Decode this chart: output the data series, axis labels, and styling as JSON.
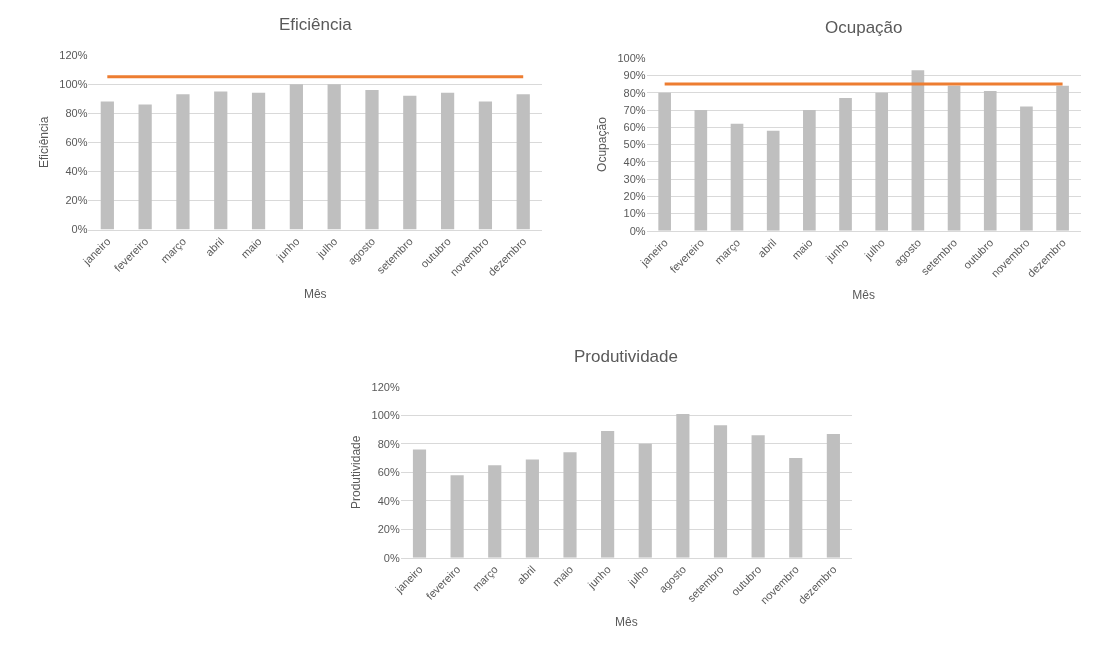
{
  "chart_data": [
    {
      "type": "bar",
      "title": "Eficiência",
      "xlabel": "Mês",
      "ylabel": "Eficiência",
      "categories": [
        "janeiro",
        "fevereiro",
        "março",
        "abril",
        "maio",
        "junho",
        "julho",
        "agosto",
        "setembro",
        "outubro",
        "novembro",
        "dezembro"
      ],
      "series": [
        {
          "color": "#bfbfbf",
          "values": [
            88,
            86,
            93,
            95,
            94,
            100,
            100,
            96,
            92,
            94,
            88,
            93
          ]
        },
        {
          "type": "line",
          "color": "#ed7d31",
          "values": [
            105,
            105,
            105,
            105,
            105,
            105,
            105,
            105,
            105,
            105,
            105,
            105
          ]
        }
      ],
      "ylim": [
        0,
        120
      ],
      "yticks": [
        {
          "value": 0,
          "label": "0%"
        },
        {
          "value": 20,
          "label": "20%"
        },
        {
          "value": 40,
          "label": "40%"
        },
        {
          "value": 60,
          "label": "60%"
        },
        {
          "value": 80,
          "label": "80%"
        },
        {
          "value": 100,
          "label": "100%"
        },
        {
          "value": 120,
          "label": "120%"
        }
      ],
      "grid": "y"
    },
    {
      "type": "bar",
      "title": "Ocupação",
      "xlabel": "Mês",
      "ylabel": "Ocupação",
      "categories": [
        "janeiro",
        "fevereiro",
        "março",
        "abril",
        "maio",
        "junho",
        "julho",
        "agosto",
        "setembro",
        "outubro",
        "novembro",
        "dezembro"
      ],
      "series": [
        {
          "color": "#bfbfbf",
          "values": [
            80,
            70,
            62,
            58,
            70,
            77,
            80,
            93,
            84,
            81,
            72,
            84
          ]
        },
        {
          "type": "line",
          "color": "#ed7d31",
          "values": [
            85,
            85,
            85,
            85,
            85,
            85,
            85,
            85,
            85,
            85,
            85,
            85
          ]
        }
      ],
      "ylim": [
        0,
        100
      ],
      "yticks": [
        {
          "value": 0,
          "label": "0%"
        },
        {
          "value": 10,
          "label": "10%"
        },
        {
          "value": 20,
          "label": "20%"
        },
        {
          "value": 30,
          "label": "30%"
        },
        {
          "value": 40,
          "label": "40%"
        },
        {
          "value": 50,
          "label": "50%"
        },
        {
          "value": 60,
          "label": "60%"
        },
        {
          "value": 70,
          "label": "70%"
        },
        {
          "value": 80,
          "label": "80%"
        },
        {
          "value": 90,
          "label": "90%"
        },
        {
          "value": 100,
          "label": "100%"
        }
      ],
      "grid": "y"
    },
    {
      "type": "bar",
      "title": "Produtividade",
      "xlabel": "Mês",
      "ylabel": "Produtividade",
      "categories": [
        "janeiro",
        "fevereiro",
        "março",
        "abril",
        "maio",
        "junho",
        "julho",
        "agosto",
        "setembro",
        "outubro",
        "novembro",
        "dezembro"
      ],
      "series": [
        {
          "color": "#bfbfbf",
          "values": [
            76,
            58,
            65,
            69,
            74,
            89,
            80,
            101,
            93,
            86,
            70,
            87
          ]
        }
      ],
      "ylim": [
        0,
        120
      ],
      "yticks": [
        {
          "value": 0,
          "label": "0%"
        },
        {
          "value": 20,
          "label": "20%"
        },
        {
          "value": 40,
          "label": "40%"
        },
        {
          "value": 60,
          "label": "60%"
        },
        {
          "value": 80,
          "label": "80%"
        },
        {
          "value": 100,
          "label": "100%"
        },
        {
          "value": 120,
          "label": "120%"
        }
      ],
      "grid": "y"
    }
  ]
}
